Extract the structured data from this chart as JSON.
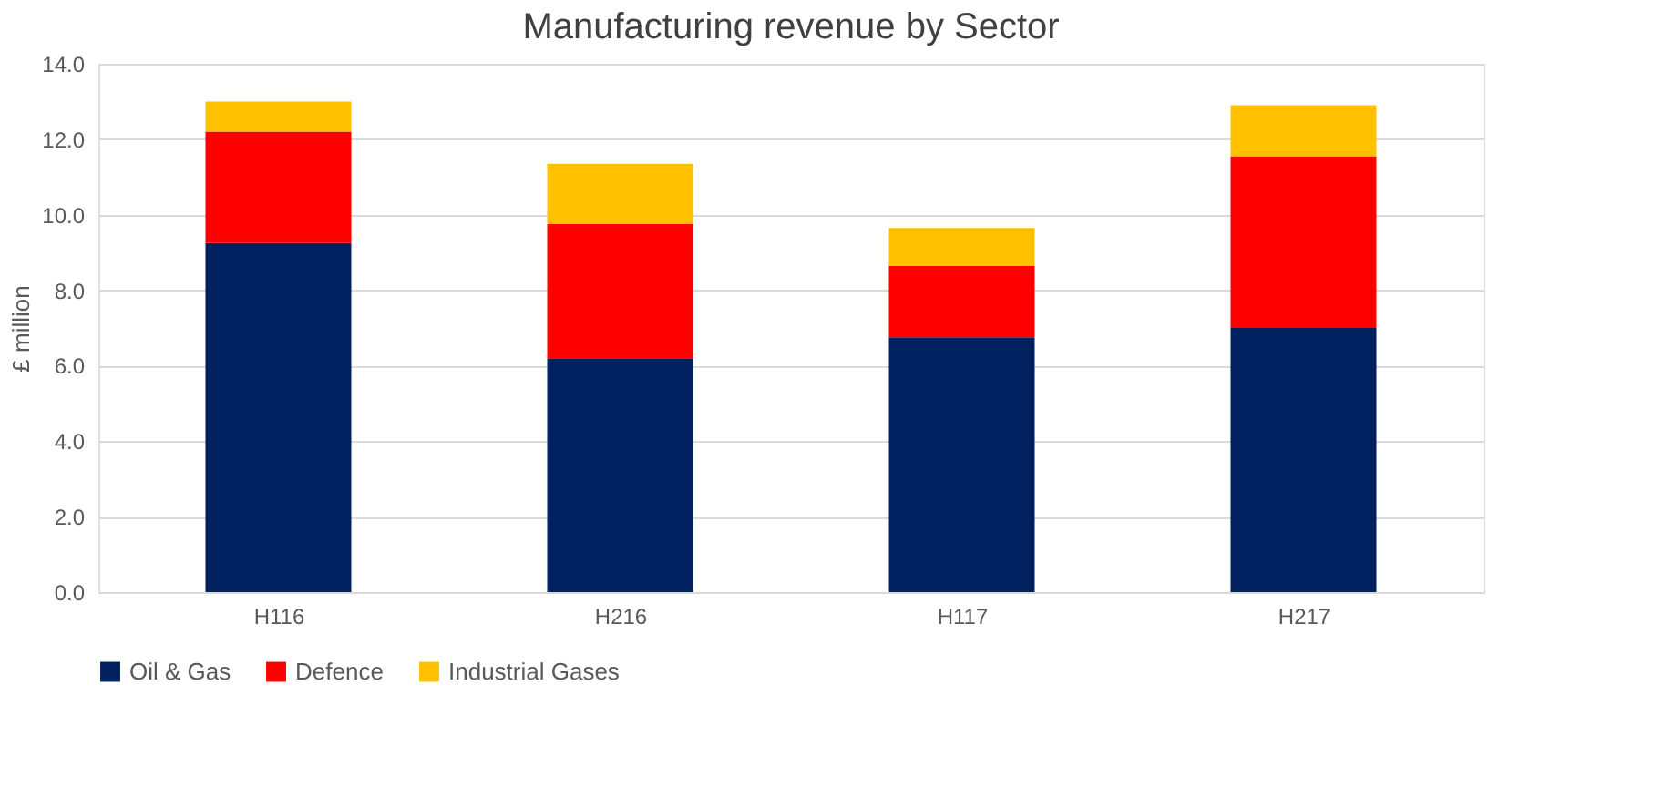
{
  "chart_data": {
    "type": "bar",
    "title": "Manufacturing revenue by Sector",
    "ylabel": "£ million",
    "categories": [
      "H116",
      "H216",
      "H117",
      "H217"
    ],
    "series": [
      {
        "name": "Oil & Gas",
        "color": "#002060",
        "values": [
          9.25,
          6.2,
          6.75,
          7.0
        ]
      },
      {
        "name": "Defence",
        "color": "#ff0000",
        "values": [
          2.95,
          3.55,
          1.9,
          4.55
        ]
      },
      {
        "name": "Industrial Gases",
        "color": "#ffc000",
        "values": [
          0.8,
          1.6,
          1.0,
          1.35
        ]
      }
    ],
    "stacked": true,
    "ylim": [
      0,
      14
    ],
    "yticks": [
      {
        "value": 0,
        "label": "0.0"
      },
      {
        "value": 2,
        "label": "2.0"
      },
      {
        "value": 4,
        "label": "4.0"
      },
      {
        "value": 6,
        "label": "6.0"
      },
      {
        "value": 8,
        "label": "8.0"
      },
      {
        "value": 10,
        "label": "10.0"
      },
      {
        "value": 12,
        "label": "12.0"
      },
      {
        "value": 14,
        "label": "14.0"
      }
    ],
    "grid": "y",
    "legend": "bottom"
  }
}
